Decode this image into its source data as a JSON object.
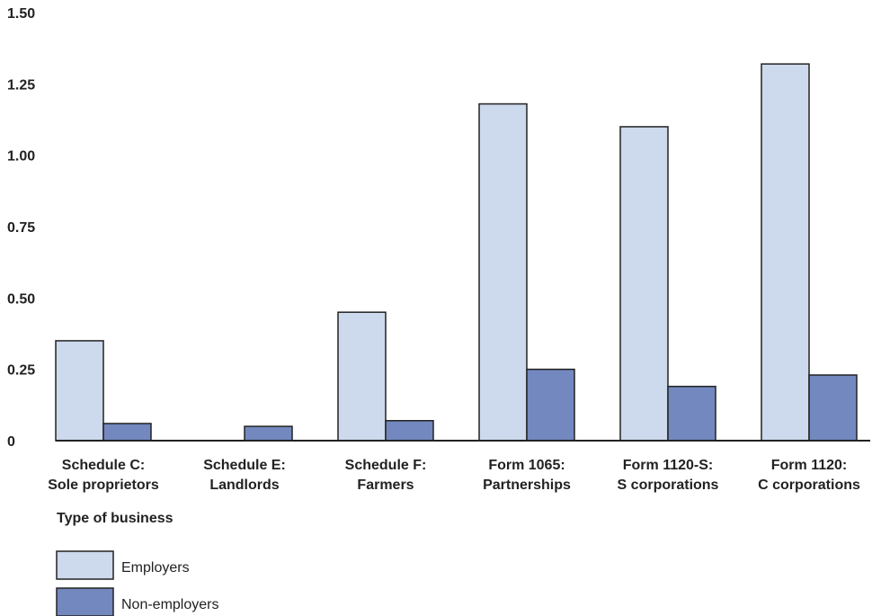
{
  "chart_data": {
    "type": "bar",
    "categories": [
      [
        "Schedule C:",
        "Sole proprietors"
      ],
      [
        "Schedule E:",
        "Landlords"
      ],
      [
        "Schedule F:",
        "Farmers"
      ],
      [
        "Form 1065:",
        "Partnerships"
      ],
      [
        "Form 1120-S:",
        "S corporations"
      ],
      [
        "Form 1120:",
        "C corporations"
      ]
    ],
    "series": [
      {
        "name": "Employers",
        "values": [
          0.35,
          0,
          0.45,
          1.18,
          1.1,
          1.32
        ],
        "color": "#cdd9ec"
      },
      {
        "name": "Non-employers",
        "values": [
          0.06,
          0.05,
          0.07,
          0.25,
          0.19,
          0.23
        ],
        "color": "#7388bf"
      }
    ],
    "y_ticks": [
      {
        "value": 0,
        "label": "0"
      },
      {
        "value": 0.25,
        "label": "0.25"
      },
      {
        "value": 0.5,
        "label": "0.50"
      },
      {
        "value": 0.75,
        "label": "0.75"
      },
      {
        "value": 1.0,
        "label": "1.00"
      },
      {
        "value": 1.25,
        "label": "1.25"
      },
      {
        "value": 1.5,
        "label": "1.50"
      }
    ],
    "title": "",
    "xlabel": "Type of business",
    "ylabel": "",
    "ylim": [
      0,
      1.5
    ],
    "grid": false,
    "legend_position": "bottom-left"
  }
}
